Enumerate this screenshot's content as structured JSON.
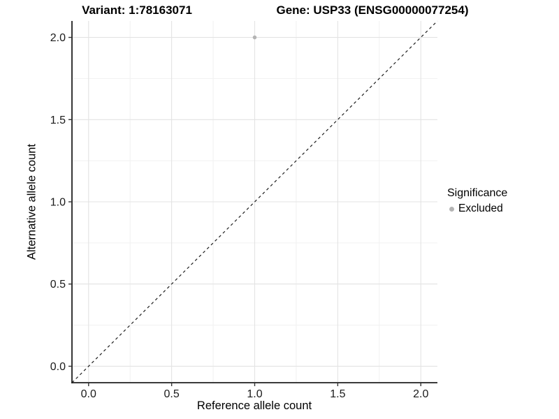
{
  "titles": {
    "variant": "Variant: 1:78163071",
    "gene": "Gene: USP33 (ENSG00000077254)"
  },
  "legend": {
    "title": "Significance",
    "items": [
      {
        "label": "Excluded",
        "color": "#b4b4b4"
      }
    ]
  },
  "colors": {
    "background": "#ffffff",
    "grid_major": "#e3e3e3",
    "grid_minor": "#f1f1f1",
    "axis_line": "#1f1f1f",
    "tick_mark": "#333333",
    "tick_text": "#1a1a1a",
    "title_text": "#000000",
    "point_excluded": "#b4b4b4",
    "dashed_line": "#1f1f1f"
  },
  "chart_data": {
    "type": "scatter",
    "title": "Variant: 1:78163071   Gene: USP33 (ENSG00000077254)",
    "xlabel": "Reference allele count",
    "ylabel": "Alternative allele count",
    "xlim": [
      -0.1,
      2.1
    ],
    "ylim": [
      -0.1,
      2.1
    ],
    "x_ticks": [
      0.0,
      0.5,
      1.0,
      1.5,
      2.0
    ],
    "y_ticks": [
      0.0,
      0.5,
      1.0,
      1.5,
      2.0
    ],
    "x_tick_labels": [
      "0.0",
      "0.5",
      "1.0",
      "1.5",
      "2.0"
    ],
    "y_tick_labels": [
      "0.0",
      "0.5",
      "1.0",
      "1.5",
      "2.0"
    ],
    "x_minor_ticks": [
      0.25,
      0.75,
      1.25,
      1.75
    ],
    "y_minor_ticks": [
      0.25,
      0.75,
      1.25,
      1.75
    ],
    "grid": true,
    "legend_position": "right",
    "legend_title": "Significance",
    "series": [
      {
        "name": "Excluded",
        "color": "#b4b4b4",
        "points": [
          {
            "x": 1.0,
            "y": 2.0
          }
        ]
      }
    ],
    "reference_line": {
      "type": "identity",
      "from": [
        -0.1,
        -0.1
      ],
      "to": [
        2.1,
        2.1
      ],
      "style": "dashed",
      "color": "#1f1f1f"
    }
  }
}
